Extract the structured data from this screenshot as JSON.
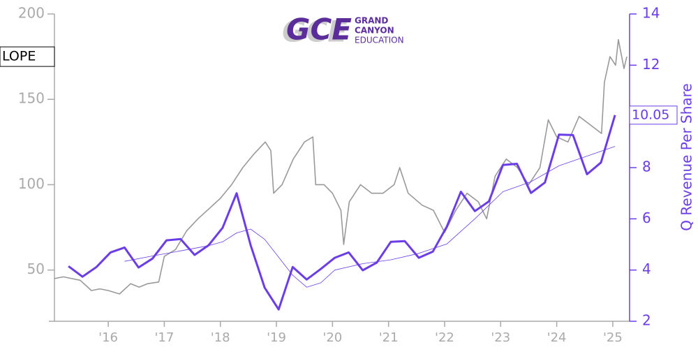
{
  "chart_data": {
    "type": "line",
    "ticker": "LOPE",
    "logo": {
      "mark": "GCE",
      "lines": [
        "GRAND",
        "CANYON",
        "EDUCATION"
      ]
    },
    "y2label": "Q Revenue Per Share",
    "xlim": [
      2015.04,
      2025.3
    ],
    "xticks": [
      {
        "value": 2016,
        "label": "'16"
      },
      {
        "value": 2017,
        "label": "'17"
      },
      {
        "value": 2018,
        "label": "'18"
      },
      {
        "value": 2019,
        "label": "'19"
      },
      {
        "value": 2020,
        "label": "'20"
      },
      {
        "value": 2021,
        "label": "'21"
      },
      {
        "value": 2022,
        "label": "'22"
      },
      {
        "value": 2023,
        "label": "'23"
      },
      {
        "value": 2024,
        "label": "'24"
      },
      {
        "value": 2025,
        "label": "'25"
      }
    ],
    "ylim": [
      20,
      200
    ],
    "yticks": [
      50,
      100,
      150,
      200
    ],
    "y2lim": [
      2,
      14
    ],
    "y2ticks": [
      2,
      4,
      6,
      8,
      10,
      12,
      14
    ],
    "series": [
      {
        "color": "#999999",
        "x": [
          2015.04,
          2015.2,
          2015.5,
          2015.7,
          2015.85,
          2016.0,
          2016.2,
          2016.4,
          2016.55,
          2016.7,
          2016.9,
          2017.0,
          2017.2,
          2017.4,
          2017.6,
          2017.8,
          2018.0,
          2018.2,
          2018.4,
          2018.6,
          2018.8,
          2018.9,
          2018.95,
          2019.1,
          2019.3,
          2019.5,
          2019.65,
          2019.7,
          2019.85,
          2020.0,
          2020.15,
          2020.2,
          2020.3,
          2020.5,
          2020.7,
          2020.9,
          2021.1,
          2021.2,
          2021.35,
          2021.6,
          2021.8,
          2022.0,
          2022.2,
          2022.4,
          2022.6,
          2022.75,
          2022.9,
          2023.1,
          2023.3,
          2023.5,
          2023.7,
          2023.85,
          2024.0,
          2024.2,
          2024.4,
          2024.6,
          2024.8,
          2024.85,
          2024.95,
          2025.05,
          2025.1,
          2025.2,
          2025.25
        ],
        "values": [
          45,
          46,
          44,
          38,
          39,
          38,
          36,
          42,
          40,
          42,
          43,
          58,
          62,
          73,
          80,
          86,
          92,
          100,
          110,
          118,
          125,
          120,
          95,
          100,
          115,
          125,
          128,
          100,
          100,
          95,
          85,
          65,
          90,
          100,
          95,
          95,
          100,
          110,
          95,
          88,
          85,
          72,
          85,
          95,
          90,
          80,
          105,
          115,
          110,
          100,
          110,
          138,
          128,
          125,
          140,
          135,
          130,
          160,
          175,
          170,
          185,
          168,
          175
        ]
      },
      {
        "color": "#6a3de8",
        "axis": "y2",
        "x": [
          2015.29,
          2015.54,
          2015.79,
          2016.04,
          2016.29,
          2016.54,
          2016.79,
          2017.04,
          2017.29,
          2017.54,
          2017.79,
          2018.04,
          2018.29,
          2018.54,
          2018.79,
          2019.04,
          2019.29,
          2019.54,
          2019.79,
          2020.04,
          2020.29,
          2020.54,
          2020.79,
          2021.04,
          2021.29,
          2021.54,
          2021.79,
          2022.04,
          2022.29,
          2022.54,
          2022.79,
          2023.04,
          2023.29,
          2023.54,
          2023.79,
          2024.04,
          2024.29,
          2024.54,
          2024.79,
          2025.04
        ],
        "values": [
          4.15,
          3.74,
          4.12,
          4.69,
          4.88,
          4.1,
          4.45,
          5.16,
          5.21,
          4.59,
          4.97,
          5.65,
          7.0,
          4.97,
          3.31,
          2.46,
          4.12,
          3.63,
          4.04,
          4.48,
          4.69,
          3.99,
          4.29,
          5.1,
          5.13,
          4.48,
          4.72,
          5.7,
          7.06,
          6.3,
          6.68,
          8.1,
          8.15,
          7.01,
          7.42,
          9.29,
          9.27,
          7.74,
          8.2,
          10.05
        ]
      },
      {
        "color": "#6a3de8",
        "axis": "y2",
        "x": [
          2016.29,
          2016.79,
          2017.29,
          2017.79,
          2018.04,
          2018.29,
          2018.54,
          2018.79,
          2019.04,
          2019.29,
          2019.54,
          2019.79,
          2020.04,
          2020.54,
          2021.04,
          2021.54,
          2022.04,
          2022.54,
          2023.04,
          2023.54,
          2024.04,
          2024.54,
          2025.04
        ],
        "values": [
          4.34,
          4.55,
          4.75,
          4.95,
          5.1,
          5.45,
          5.6,
          5.2,
          4.5,
          3.8,
          3.33,
          3.5,
          4.0,
          4.25,
          4.4,
          4.65,
          5.02,
          6.0,
          7.06,
          7.45,
          8.07,
          8.45,
          8.83
        ]
      }
    ]
  }
}
